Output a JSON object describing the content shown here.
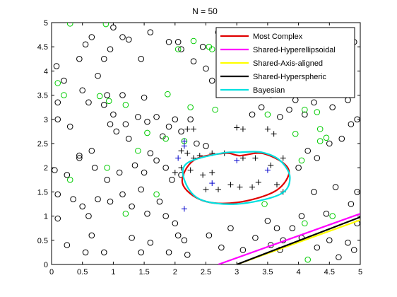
{
  "chart_data": {
    "type": "scatter",
    "title": "N = 50",
    "xlabel": "",
    "ylabel": "",
    "xlim": [
      0,
      5
    ],
    "ylim": [
      0,
      5
    ],
    "xticks": [
      "0",
      "0.5",
      "1",
      "1.5",
      "2",
      "2.5",
      "3",
      "3.5",
      "4",
      "4.5",
      "5"
    ],
    "yticks": [
      "0",
      "0.5",
      "1",
      "1.5",
      "2",
      "2.5",
      "3",
      "3.5",
      "4",
      "4.5",
      "5"
    ],
    "grid": false,
    "legend_position": "top-right",
    "series": [
      {
        "marker": "circle",
        "color": "#000000",
        "points": [
          [
            0.08,
            4.1
          ],
          [
            0.1,
            3.0
          ],
          [
            0.2,
            3.8
          ],
          [
            0.45,
            4.25
          ],
          [
            0.5,
            3.6
          ],
          [
            0.55,
            4.55
          ],
          [
            0.65,
            4.7
          ],
          [
            0.75,
            3.9
          ],
          [
            0.85,
            4.25
          ],
          [
            0.95,
            4.45
          ],
          [
            1.0,
            4.9
          ],
          [
            1.15,
            4.7
          ],
          [
            1.25,
            4.65
          ],
          [
            1.45,
            4.25
          ],
          [
            1.6,
            4.8
          ],
          [
            1.9,
            4.6
          ],
          [
            2.1,
            4.45
          ],
          [
            2.3,
            4.2
          ],
          [
            2.45,
            4.5
          ],
          [
            2.7,
            4.8
          ],
          [
            2.95,
            4.6
          ],
          [
            2.5,
            4.05
          ],
          [
            2.6,
            3.8
          ],
          [
            2.75,
            3.65
          ],
          [
            2.95,
            4.3
          ],
          [
            3.3,
            4.0
          ],
          [
            3.55,
            3.9
          ],
          [
            3.65,
            4.2
          ],
          [
            3.8,
            4.45
          ],
          [
            4.0,
            4.7
          ],
          [
            4.4,
            4.55
          ],
          [
            4.7,
            4.75
          ],
          [
            4.9,
            4.6
          ],
          [
            0.1,
            3.35
          ],
          [
            0.3,
            2.85
          ],
          [
            0.45,
            2.25
          ],
          [
            0.6,
            3.35
          ],
          [
            0.65,
            2.35
          ],
          [
            0.85,
            3.3
          ],
          [
            0.9,
            3.5
          ],
          [
            1.0,
            3.1
          ],
          [
            1.15,
            3.5
          ],
          [
            1.25,
            2.6
          ],
          [
            1.4,
            3.05
          ],
          [
            1.5,
            3.45
          ],
          [
            1.55,
            2.95
          ],
          [
            1.7,
            3.05
          ],
          [
            1.9,
            2.85
          ],
          [
            2.0,
            3.0
          ],
          [
            2.1,
            2.75
          ],
          [
            2.25,
            3.0
          ],
          [
            0.05,
            1.95
          ],
          [
            0.1,
            1.45
          ],
          [
            0.25,
            1.85
          ],
          [
            0.35,
            1.35
          ],
          [
            0.5,
            1.2
          ],
          [
            0.6,
            1.0
          ],
          [
            0.65,
            0.6
          ],
          [
            0.75,
            1.35
          ],
          [
            0.95,
            1.3
          ],
          [
            1.15,
            1.45
          ],
          [
            1.3,
            1.2
          ],
          [
            1.45,
            1.55
          ],
          [
            1.55,
            1.05
          ],
          [
            1.75,
            1.3
          ],
          [
            1.85,
            1.0
          ],
          [
            2.0,
            0.85
          ],
          [
            2.05,
            0.6
          ],
          [
            2.2,
            0.2
          ],
          [
            0.1,
            0.95
          ],
          [
            0.25,
            0.4
          ],
          [
            0.55,
            0.25
          ],
          [
            0.85,
            0.25
          ],
          [
            1.3,
            0.55
          ],
          [
            1.45,
            0.25
          ],
          [
            1.6,
            0.45
          ],
          [
            1.9,
            0.25
          ],
          [
            2.15,
            0.5
          ],
          [
            2.55,
            0.6
          ],
          [
            2.75,
            0.35
          ],
          [
            2.9,
            0.75
          ],
          [
            3.1,
            0.3
          ],
          [
            3.3,
            0.55
          ],
          [
            3.55,
            0.4
          ],
          [
            3.7,
            0.3
          ],
          [
            3.75,
            0.5
          ],
          [
            3.9,
            0.75
          ],
          [
            4.05,
            0.55
          ],
          [
            4.3,
            0.35
          ],
          [
            4.5,
            0.5
          ],
          [
            4.65,
            0.15
          ],
          [
            4.8,
            0.45
          ],
          [
            4.9,
            0.3
          ],
          [
            4.95,
            0.85
          ],
          [
            3.5,
            0.9
          ],
          [
            3.65,
            0.75
          ],
          [
            4.05,
            1.0
          ],
          [
            4.25,
            1.5
          ],
          [
            4.45,
            1.05
          ],
          [
            4.6,
            1.6
          ],
          [
            4.85,
            1.25
          ],
          [
            4.95,
            1.5
          ],
          [
            4.0,
            2.0
          ],
          [
            4.15,
            2.35
          ],
          [
            4.3,
            2.2
          ],
          [
            4.5,
            2.5
          ],
          [
            4.7,
            2.6
          ],
          [
            4.85,
            2.9
          ],
          [
            4.95,
            3.0
          ],
          [
            4.55,
            3.25
          ],
          [
            4.8,
            3.4
          ],
          [
            4.6,
            3.55
          ],
          [
            3.85,
            3.2
          ],
          [
            3.95,
            3.4
          ],
          [
            4.1,
            3.1
          ],
          [
            4.25,
            3.35
          ],
          [
            3.55,
            3.5
          ],
          [
            3.7,
            3.05
          ],
          [
            3.4,
            3.25
          ],
          [
            3.25,
            3.1
          ],
          [
            0.95,
            2.9
          ],
          [
            1.05,
            2.75
          ],
          [
            1.2,
            2.9
          ],
          [
            1.6,
            2.3
          ],
          [
            1.8,
            2.65
          ],
          [
            1.35,
            2.05
          ],
          [
            1.5,
            1.9
          ],
          [
            1.7,
            2.15
          ],
          [
            1.85,
            2.0
          ],
          [
            1.95,
            1.75
          ],
          [
            2.1,
            1.85
          ],
          [
            0.45,
            2.2
          ],
          [
            0.7,
            2.0
          ],
          [
            0.9,
            1.75
          ],
          [
            1.1,
            1.9
          ],
          [
            2.35,
            2.5
          ],
          [
            2.5,
            2.45
          ],
          [
            4.4,
            4.3
          ],
          [
            2.05,
            4.6
          ]
        ]
      },
      {
        "marker": "circle",
        "color": "#00cc00",
        "points": [
          [
            0.3,
            4.98
          ],
          [
            0.88,
            4.97
          ],
          [
            2.3,
            4.62
          ],
          [
            2.05,
            4.45
          ],
          [
            2.55,
            4.5
          ],
          [
            2.6,
            4.45
          ],
          [
            0.1,
            3.75
          ],
          [
            0.2,
            3.5
          ],
          [
            0.78,
            3.48
          ],
          [
            0.93,
            3.38
          ],
          [
            1.2,
            3.3
          ],
          [
            1.55,
            2.72
          ],
          [
            1.88,
            3.52
          ],
          [
            2.25,
            3.25
          ],
          [
            2.65,
            3.2
          ],
          [
            3.5,
            3.1
          ],
          [
            4.1,
            3.2
          ],
          [
            4.3,
            3.15
          ],
          [
            4.35,
            2.8
          ],
          [
            4.45,
            2.62
          ],
          [
            4.35,
            2.55
          ],
          [
            1.4,
            2.35
          ],
          [
            1.85,
            2.6
          ],
          [
            2.15,
            2.55
          ],
          [
            0.9,
            2.0
          ],
          [
            0.3,
            1.75
          ],
          [
            1.7,
            1.45
          ],
          [
            1.2,
            1.05
          ],
          [
            2.95,
            4.48
          ],
          [
            3.95,
            2.7
          ],
          [
            4.05,
            2.15
          ],
          [
            4.55,
            1.0
          ],
          [
            4.1,
            0.85
          ],
          [
            3.45,
            1.25
          ],
          [
            4.15,
            0.1
          ]
        ]
      },
      {
        "marker": "plus",
        "color": "#000000",
        "points": [
          [
            2.2,
            2.8
          ],
          [
            2.3,
            2.8
          ],
          [
            3.0,
            2.83
          ],
          [
            3.1,
            2.8
          ],
          [
            3.5,
            2.8
          ],
          [
            3.6,
            2.7
          ],
          [
            2.1,
            2.35
          ],
          [
            2.2,
            2.3
          ],
          [
            2.3,
            2.2
          ],
          [
            2.4,
            2.25
          ],
          [
            2.6,
            2.3
          ],
          [
            2.8,
            2.3
          ],
          [
            3.1,
            2.2
          ],
          [
            3.3,
            2.2
          ],
          [
            3.55,
            2.05
          ],
          [
            3.75,
            2.2
          ],
          [
            2.1,
            2.0
          ],
          [
            2.25,
            1.95
          ],
          [
            2.45,
            1.85
          ],
          [
            2.6,
            1.9
          ],
          [
            2.5,
            1.55
          ],
          [
            2.7,
            1.55
          ],
          [
            2.9,
            1.65
          ],
          [
            3.05,
            1.6
          ],
          [
            3.35,
            1.7
          ],
          [
            3.65,
            1.65
          ],
          [
            3.75,
            1.5
          ],
          [
            3.25,
            1.6
          ],
          [
            2.0,
            1.9
          ]
        ]
      },
      {
        "marker": "plus",
        "color": "#0000cc",
        "points": [
          [
            2.15,
            2.55
          ],
          [
            2.15,
            2.45
          ],
          [
            2.6,
            1.68
          ],
          [
            3.0,
            2.15
          ],
          [
            3.5,
            1.95
          ],
          [
            2.15,
            1.15
          ],
          [
            2.05,
            2.2
          ]
        ]
      },
      {
        "name": "Most Complex",
        "marker": "line",
        "color": "#e00000",
        "curve": "ellipse",
        "points": [
          [
            3.11,
            1.78
          ],
          [
            3.05,
            2.25
          ],
          [
            2.8,
            2.3
          ],
          [
            2.3,
            2.15
          ],
          [
            2.12,
            1.68
          ],
          [
            2.45,
            1.32
          ],
          [
            3.0,
            1.28
          ],
          [
            3.6,
            1.5
          ],
          [
            3.84,
            1.85
          ],
          [
            3.75,
            2.1
          ],
          [
            3.4,
            2.3
          ],
          [
            3.11,
            1.78
          ]
        ]
      },
      {
        "name": "Shared-Hyperellipsoidal",
        "marker": "line",
        "color": "#ff00ff",
        "points": [
          [
            2.7,
            0.0
          ],
          [
            5.0,
            1.05
          ]
        ]
      },
      {
        "name": "Shared-Axis-aligned",
        "marker": "line",
        "color": "#ffff00",
        "points": [
          [
            3.0,
            0.0
          ],
          [
            5.0,
            0.92
          ]
        ]
      },
      {
        "name": "Shared-Hyperspheric",
        "marker": "line",
        "color": "#000000",
        "points": [
          [
            3.0,
            0.0
          ],
          [
            5.0,
            0.98
          ]
        ]
      },
      {
        "name": "Bayesian",
        "marker": "line",
        "color": "#00e0e0",
        "curve": "ellipse",
        "points": [
          [
            3.05,
            1.78
          ],
          [
            3.05,
            2.32
          ],
          [
            2.75,
            2.3
          ],
          [
            2.2,
            2.1
          ],
          [
            2.15,
            1.75
          ],
          [
            2.4,
            1.35
          ],
          [
            3.0,
            1.25
          ],
          [
            3.7,
            1.45
          ],
          [
            3.86,
            1.8
          ],
          [
            3.7,
            2.15
          ],
          [
            3.4,
            2.32
          ],
          [
            3.05,
            1.78
          ]
        ]
      }
    ]
  }
}
